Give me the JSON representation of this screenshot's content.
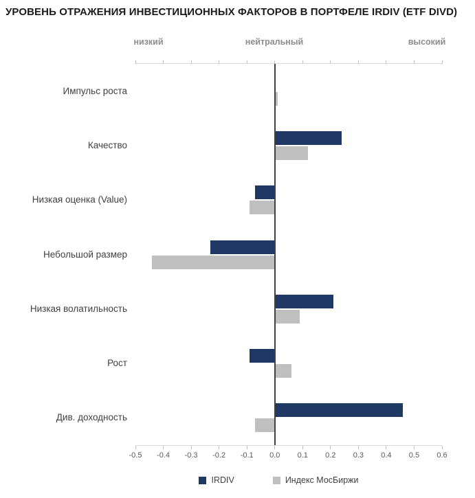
{
  "chart_data": {
    "type": "bar",
    "orientation": "horizontal",
    "title": "УРОВЕНЬ ОТРАЖЕНИЯ ИНВЕСТИЦИОННЫХ ФАКТОРОВ В ПОРТФЕЛЕ IRDIV (ETF DIVD)",
    "zone_labels": [
      "низкий",
      "нейтральный",
      "высокий"
    ],
    "categories": [
      "Импульс роста",
      "Качество",
      "Низкая оценка (Value)",
      "Небольшой размер",
      "Низкая волатильность",
      "Рост",
      "Див. доходность"
    ],
    "series": [
      {
        "name": "IRDIV",
        "color": "#1F3864",
        "values": [
          0,
          0.24,
          -0.07,
          -0.23,
          0.21,
          -0.09,
          0.46
        ]
      },
      {
        "name": "Индекс МосБиржи",
        "color": "#BFBFBF",
        "values": [
          0.01,
          0.12,
          -0.09,
          -0.44,
          0.09,
          0.06,
          -0.07
        ]
      }
    ],
    "xlim": [
      -0.5,
      0.6
    ],
    "xticks": [
      -0.5,
      -0.4,
      -0.3,
      -0.2,
      -0.1,
      0,
      0.1,
      0.2,
      0.3,
      0.4,
      0.5,
      0.6
    ],
    "legend_position": "bottom",
    "grid": false
  }
}
